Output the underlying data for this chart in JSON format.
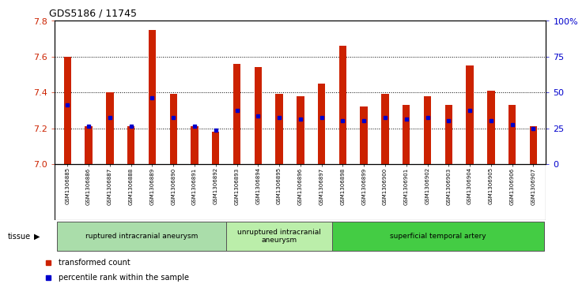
{
  "title": "GDS5186 / 11745",
  "samples": [
    "GSM1306885",
    "GSM1306886",
    "GSM1306887",
    "GSM1306888",
    "GSM1306889",
    "GSM1306890",
    "GSM1306891",
    "GSM1306892",
    "GSM1306893",
    "GSM1306894",
    "GSM1306895",
    "GSM1306896",
    "GSM1306897",
    "GSM1306898",
    "GSM1306899",
    "GSM1306900",
    "GSM1306901",
    "GSM1306902",
    "GSM1306903",
    "GSM1306904",
    "GSM1306905",
    "GSM1306906",
    "GSM1306907"
  ],
  "bar_values": [
    7.6,
    7.21,
    7.4,
    7.21,
    7.75,
    7.39,
    7.21,
    7.18,
    7.56,
    7.54,
    7.39,
    7.38,
    7.45,
    7.66,
    7.32,
    7.39,
    7.33,
    7.38,
    7.33,
    7.55,
    7.41,
    7.33,
    7.21
  ],
  "percentile_values": [
    7.33,
    7.21,
    7.26,
    7.21,
    7.37,
    7.26,
    7.21,
    7.19,
    7.3,
    7.27,
    7.26,
    7.25,
    7.26,
    7.24,
    7.24,
    7.26,
    7.25,
    7.26,
    7.24,
    7.3,
    7.24,
    7.22,
    7.2
  ],
  "ylim": [
    7.0,
    7.8
  ],
  "yticks": [
    7.0,
    7.2,
    7.4,
    7.6,
    7.8
  ],
  "right_yticks": [
    0,
    25,
    50,
    75,
    100
  ],
  "right_ylabels": [
    "0",
    "25",
    "50",
    "75",
    "100%"
  ],
  "bar_color": "#cc2200",
  "dot_color": "#0000cc",
  "groups": [
    {
      "label": "ruptured intracranial aneurysm",
      "start": 0,
      "end": 8,
      "color": "#aaddaa"
    },
    {
      "label": "unruptured intracranial\naneurysm",
      "start": 8,
      "end": 13,
      "color": "#bbeeaa"
    },
    {
      "label": "superficial temporal artery",
      "start": 13,
      "end": 23,
      "color": "#44cc44"
    }
  ],
  "legend_items": [
    {
      "label": "transformed count",
      "color": "#cc2200"
    },
    {
      "label": "percentile rank within the sample",
      "color": "#0000cc"
    }
  ],
  "label_bg_color": "#dddddd",
  "grid_lines": [
    7.2,
    7.4,
    7.6
  ]
}
